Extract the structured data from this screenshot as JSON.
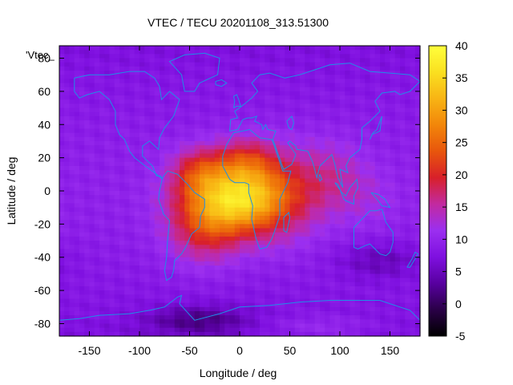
{
  "chart_data": {
    "type": "heatmap",
    "title": "VTEC / TECU 20201108_313.51300",
    "xlabel": "Longitude / deg",
    "ylabel": "Latitude / deg",
    "key_label": "'Vtec_",
    "xlim": [
      -180,
      180
    ],
    "ylim": [
      -87.5,
      87.5
    ],
    "x_ticks": [
      -150,
      -100,
      -50,
      0,
      50,
      100,
      150
    ],
    "y_ticks": [
      -80,
      -60,
      -40,
      -20,
      0,
      20,
      40,
      60,
      80
    ],
    "colorbar": {
      "range": [
        -5,
        40
      ],
      "ticks": [
        -5,
        0,
        5,
        10,
        15,
        20,
        25,
        30,
        35,
        40
      ],
      "palette": [
        "#000000",
        "#2a0047",
        "#5800a0",
        "#7f10e0",
        "#9b2ff0",
        "#c22aa0",
        "#d8202a",
        "#e8560c",
        "#f2860a",
        "#f8b414",
        "#fae020",
        "#ffff3c"
      ]
    },
    "grid": {
      "lon_step": 5,
      "lat_step": 2.5,
      "description": "VTEC in TECU; smooth equatorial anomaly centred near lon -10, lat -5 (max ~38), secondary lobes near 0/20N and -40/15N, Indian-ocean lobe ~18"
    },
    "coastline_color": "#1e8fe6",
    "grid_on": false
  }
}
